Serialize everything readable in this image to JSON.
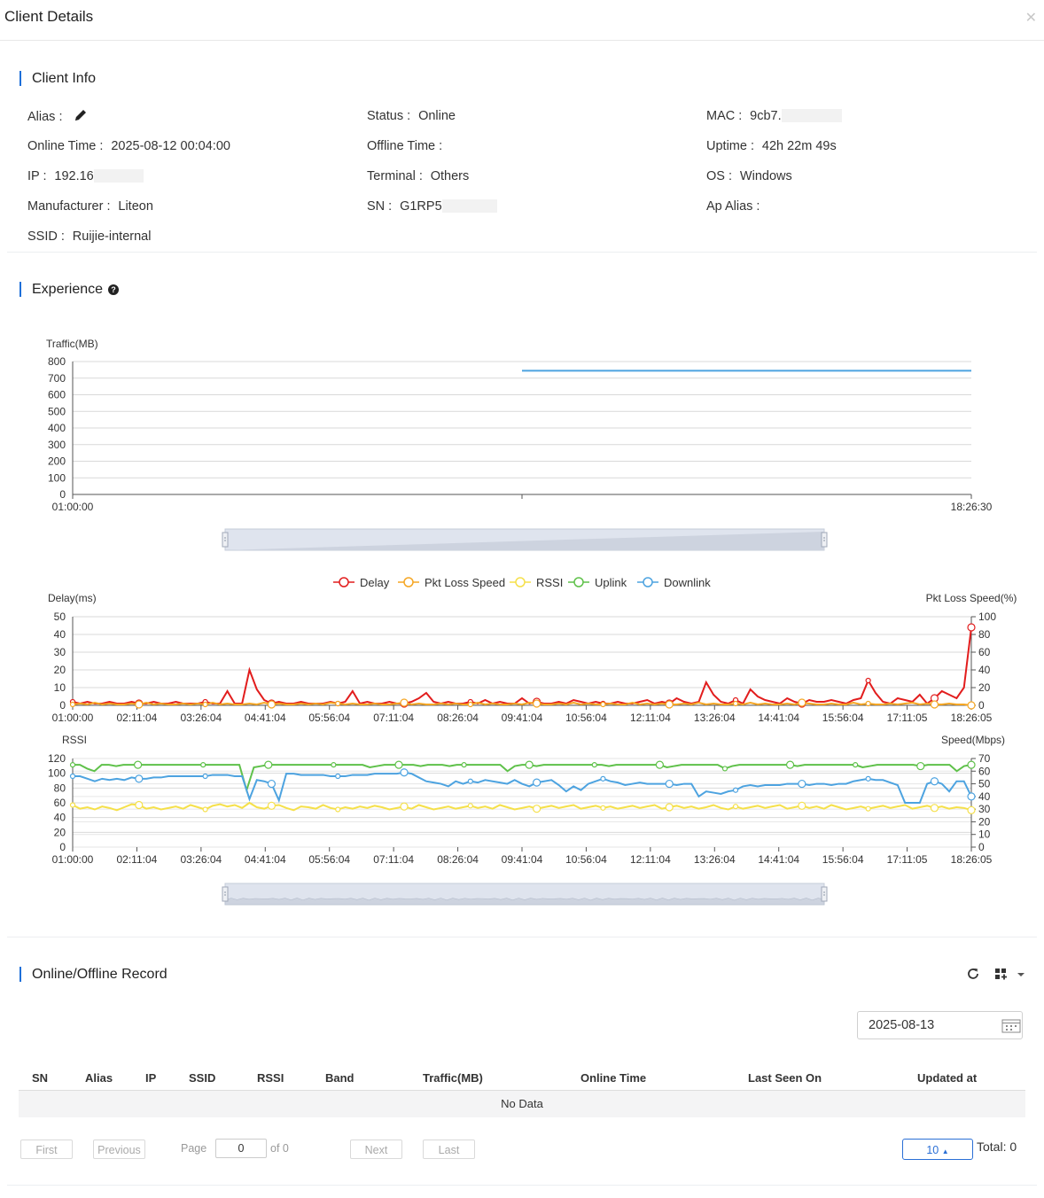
{
  "dialog": {
    "title": "Client Details"
  },
  "client_info": {
    "title": "Client Info",
    "alias_label": "Alias :",
    "status_label": "Status :",
    "status_value": "Online",
    "mac_label": "MAC :",
    "mac_value": "9cb7.",
    "online_time_label": "Online Time :",
    "online_time_value": "2025-08-12 00:04:00",
    "offline_time_label": "Offline Time :",
    "uptime_label": "Uptime :",
    "uptime_value": "42h 22m 49s",
    "ip_label": "IP :",
    "ip_value": "192.16",
    "terminal_label": "Terminal :",
    "terminal_value": "Others",
    "os_label": "OS :",
    "os_value": "Windows",
    "manufacturer_label": "Manufacturer :",
    "manufacturer_value": "Liteon",
    "sn_label": "SN :",
    "sn_value": "G1RP5",
    "ap_alias_label": "Ap Alias :",
    "ssid_label": "SSID :",
    "ssid_value": "Ruijie-internal"
  },
  "experience": {
    "title": "Experience",
    "help_icon": "question-circle-icon"
  },
  "chart_data": [
    {
      "type": "line",
      "ylabel": "Traffic(MB)",
      "x_ticks": [
        "01:00:00",
        "18:26:30"
      ],
      "ylim": [
        0,
        800
      ],
      "yticks": [
        0,
        100,
        200,
        300,
        400,
        500,
        600,
        700,
        800
      ],
      "grid": true,
      "series": [
        {
          "values": [
            [
              0.5,
              745
            ],
            [
              1.0,
              745
            ]
          ],
          "color": "#4da3e0"
        }
      ]
    },
    {
      "type": "line",
      "legend": [
        "Delay",
        "Pkt Loss Speed",
        "RSSI",
        "Uplink",
        "Downlink"
      ],
      "legend_position": "top-center",
      "legend_colors": [
        "#e21d1d",
        "#f5a623",
        "#f5e04a",
        "#5fc14a",
        "#4da3e0"
      ],
      "ylabel_left": "Delay(ms)",
      "ylabel_right": "Pkt Loss Speed(%)",
      "ylim_left": [
        0,
        50
      ],
      "yticks_left": [
        0,
        10,
        20,
        30,
        40,
        50
      ],
      "ylim_right": [
        0,
        100
      ],
      "yticks_right": [
        0,
        20,
        40,
        60,
        80,
        100
      ],
      "x_ticks": [
        "01:00:00",
        "02:11:04",
        "03:26:04",
        "04:41:04",
        "05:56:04",
        "07:11:04",
        "08:26:04",
        "09:41:04",
        "10:56:04",
        "12:11:04",
        "13:26:04",
        "14:41:04",
        "15:56:04",
        "17:11:05",
        "18:26:05"
      ],
      "series": [
        {
          "name": "Delay",
          "color": "#e21d1d",
          "values": [
            2,
            1,
            2,
            1,
            1,
            2,
            1,
            1,
            2,
            1,
            1,
            2,
            1,
            1,
            2,
            1,
            1,
            1,
            2,
            1,
            1,
            8,
            1,
            1,
            20,
            9,
            3,
            1,
            2,
            1,
            1,
            2,
            1,
            1,
            1,
            2,
            1,
            2,
            8,
            1,
            2,
            1,
            1,
            2,
            1,
            1,
            2,
            4,
            7,
            2,
            1,
            2,
            1,
            1,
            2,
            1,
            3,
            1,
            2,
            1,
            1,
            4,
            1,
            2,
            1,
            1,
            2,
            1,
            3,
            2,
            1,
            2,
            1,
            1,
            2,
            1,
            1,
            2,
            3,
            1,
            2,
            1,
            4,
            2,
            1,
            2,
            13,
            6,
            2,
            1,
            3,
            1,
            9,
            5,
            3,
            2,
            1,
            4,
            2,
            1,
            3,
            2,
            2,
            3,
            2,
            1,
            3,
            4,
            14,
            7,
            2,
            1,
            4,
            3,
            2,
            6,
            1,
            4,
            8,
            6,
            4,
            10,
            44
          ]
        },
        {
          "name": "Pkt Loss Speed",
          "color": "#f5a623",
          "values": [
            1,
            2,
            1,
            3,
            1,
            2,
            1,
            1,
            2,
            1,
            3,
            1,
            2,
            1,
            1,
            2,
            1,
            2,
            1,
            3,
            1,
            2,
            1,
            1,
            2,
            1,
            3,
            1,
            2,
            1,
            1,
            2,
            1,
            2,
            1,
            3,
            2,
            1,
            2,
            1,
            1,
            2,
            1,
            1,
            2,
            3,
            1,
            2,
            1,
            1,
            2,
            1,
            2,
            1,
            1,
            3,
            1,
            2,
            1,
            1,
            2,
            1,
            3,
            2,
            1,
            1,
            2,
            1,
            3,
            1,
            2,
            1,
            1,
            2,
            1,
            1,
            3,
            1,
            2,
            1,
            2,
            1,
            1,
            2,
            1,
            3,
            1,
            2,
            1,
            1,
            2,
            1,
            3,
            1,
            2,
            1,
            1,
            2,
            1,
            3,
            2,
            1,
            1,
            2,
            1,
            1,
            3,
            1,
            2,
            1,
            1,
            2,
            1,
            2,
            3,
            1,
            2,
            1,
            1,
            2,
            1,
            1,
            0
          ]
        }
      ]
    },
    {
      "type": "line",
      "ylabel_left": "RSSI",
      "ylabel_right": "Speed(Mbps)",
      "ylim_left": [
        0,
        120
      ],
      "yticks_left": [
        0,
        20,
        40,
        60,
        80,
        100,
        120
      ],
      "ylim_right": [
        0,
        70
      ],
      "yticks_right": [
        0,
        10,
        20,
        30,
        40,
        50,
        60,
        70
      ],
      "x_ticks": [
        "01:00:00",
        "02:11:04",
        "03:26:04",
        "04:41:04",
        "05:56:04",
        "07:11:04",
        "08:26:04",
        "09:41:04",
        "10:56:04",
        "12:11:04",
        "13:26:04",
        "14:41:04",
        "15:56:04",
        "17:11:05",
        "18:26:05"
      ],
      "series": [
        {
          "name": "RSSI",
          "color": "#f5e04a",
          "values": [
            57,
            52,
            54,
            51,
            55,
            53,
            50,
            54,
            58,
            57,
            52,
            54,
            51,
            53,
            55,
            52,
            57,
            54,
            51,
            56,
            58,
            55,
            57,
            53,
            60,
            54,
            52,
            56,
            57,
            53,
            50,
            55,
            54,
            52,
            57,
            53,
            51,
            54,
            52,
            55,
            53,
            56,
            54,
            51,
            53,
            55,
            52,
            57,
            54,
            51,
            53,
            55,
            52,
            54,
            56,
            53,
            55,
            52,
            57,
            54,
            51,
            53,
            55,
            52,
            54,
            56,
            53,
            55,
            57,
            52,
            54,
            56,
            53,
            55,
            52,
            54,
            56,
            53,
            55,
            57,
            52,
            54,
            56,
            53,
            55,
            52,
            54,
            57,
            53,
            51,
            55,
            52,
            54,
            56,
            53,
            55,
            57,
            52,
            54,
            56,
            53,
            55,
            52,
            57,
            54,
            51,
            53,
            55,
            52,
            54,
            56,
            53,
            55,
            57,
            52,
            54,
            56,
            53,
            55,
            52,
            54,
            53,
            50
          ]
        },
        {
          "name": "Uplink",
          "color": "#5fc14a",
          "values": [
            65,
            65,
            62,
            60,
            65,
            65,
            64,
            65,
            65,
            65,
            65,
            65,
            65,
            65,
            65,
            65,
            65,
            65,
            65,
            65,
            65,
            65,
            65,
            65,
            45,
            63,
            64,
            65,
            65,
            65,
            65,
            65,
            65,
            65,
            65,
            65,
            65,
            65,
            65,
            65,
            65,
            63,
            64,
            65,
            65,
            65,
            65,
            65,
            64,
            65,
            65,
            65,
            64,
            65,
            65,
            65,
            65,
            65,
            65,
            65,
            60,
            64,
            65,
            65,
            64,
            65,
            65,
            65,
            65,
            65,
            65,
            65,
            65,
            65,
            64,
            65,
            65,
            65,
            65,
            65,
            65,
            65,
            63,
            64,
            65,
            65,
            65,
            65,
            65,
            65,
            62,
            64,
            65,
            65,
            65,
            65,
            65,
            65,
            65,
            65,
            64,
            65,
            65,
            65,
            65,
            65,
            65,
            65,
            65,
            63,
            64,
            65,
            65,
            65,
            65,
            65,
            65,
            64,
            65,
            65,
            65,
            65,
            60,
            64,
            65
          ]
        },
        {
          "name": "Downlink",
          "color": "#4da3e0",
          "values": [
            56,
            56,
            54,
            52,
            54,
            53,
            54,
            53,
            55,
            54,
            54,
            55,
            55,
            56,
            56,
            56,
            56,
            56,
            56,
            57,
            57,
            57,
            56,
            56,
            38,
            53,
            52,
            50,
            37,
            58,
            58,
            57,
            57,
            57,
            57,
            56,
            56,
            56,
            57,
            57,
            57,
            58,
            58,
            58,
            58,
            59,
            58,
            55,
            52,
            51,
            50,
            48,
            52,
            50,
            52,
            51,
            53,
            52,
            51,
            50,
            53,
            50,
            48,
            51,
            52,
            53,
            49,
            44,
            48,
            45,
            50,
            52,
            54,
            52,
            51,
            49,
            50,
            51,
            50,
            50,
            50,
            50,
            49,
            50,
            50,
            40,
            44,
            43,
            42,
            44,
            45,
            48,
            49,
            48,
            49,
            49,
            49,
            50,
            50,
            50,
            49,
            50,
            50,
            49,
            50,
            50,
            52,
            53,
            54,
            53,
            53,
            51,
            49,
            35,
            35,
            35,
            50,
            52,
            50,
            44,
            52,
            52,
            40
          ]
        }
      ]
    }
  ],
  "record": {
    "title": "Online/Offline Record",
    "refresh_icon": "refresh-icon",
    "columns_icon": "columns-settings-icon",
    "date_value": "2025-08-13",
    "columns": [
      "SN",
      "Alias",
      "IP",
      "SSID",
      "RSSI",
      "Band",
      "Traffic(MB)",
      "Online Time",
      "Last Seen On",
      "Updated at"
    ],
    "empty_text": "No Data"
  },
  "pagination": {
    "first": "First",
    "previous": "Previous",
    "page_label": "Page",
    "page_value": "0",
    "of_label": "of 0",
    "next": "Next",
    "last": "Last",
    "page_size": "10",
    "total": "Total: 0"
  }
}
